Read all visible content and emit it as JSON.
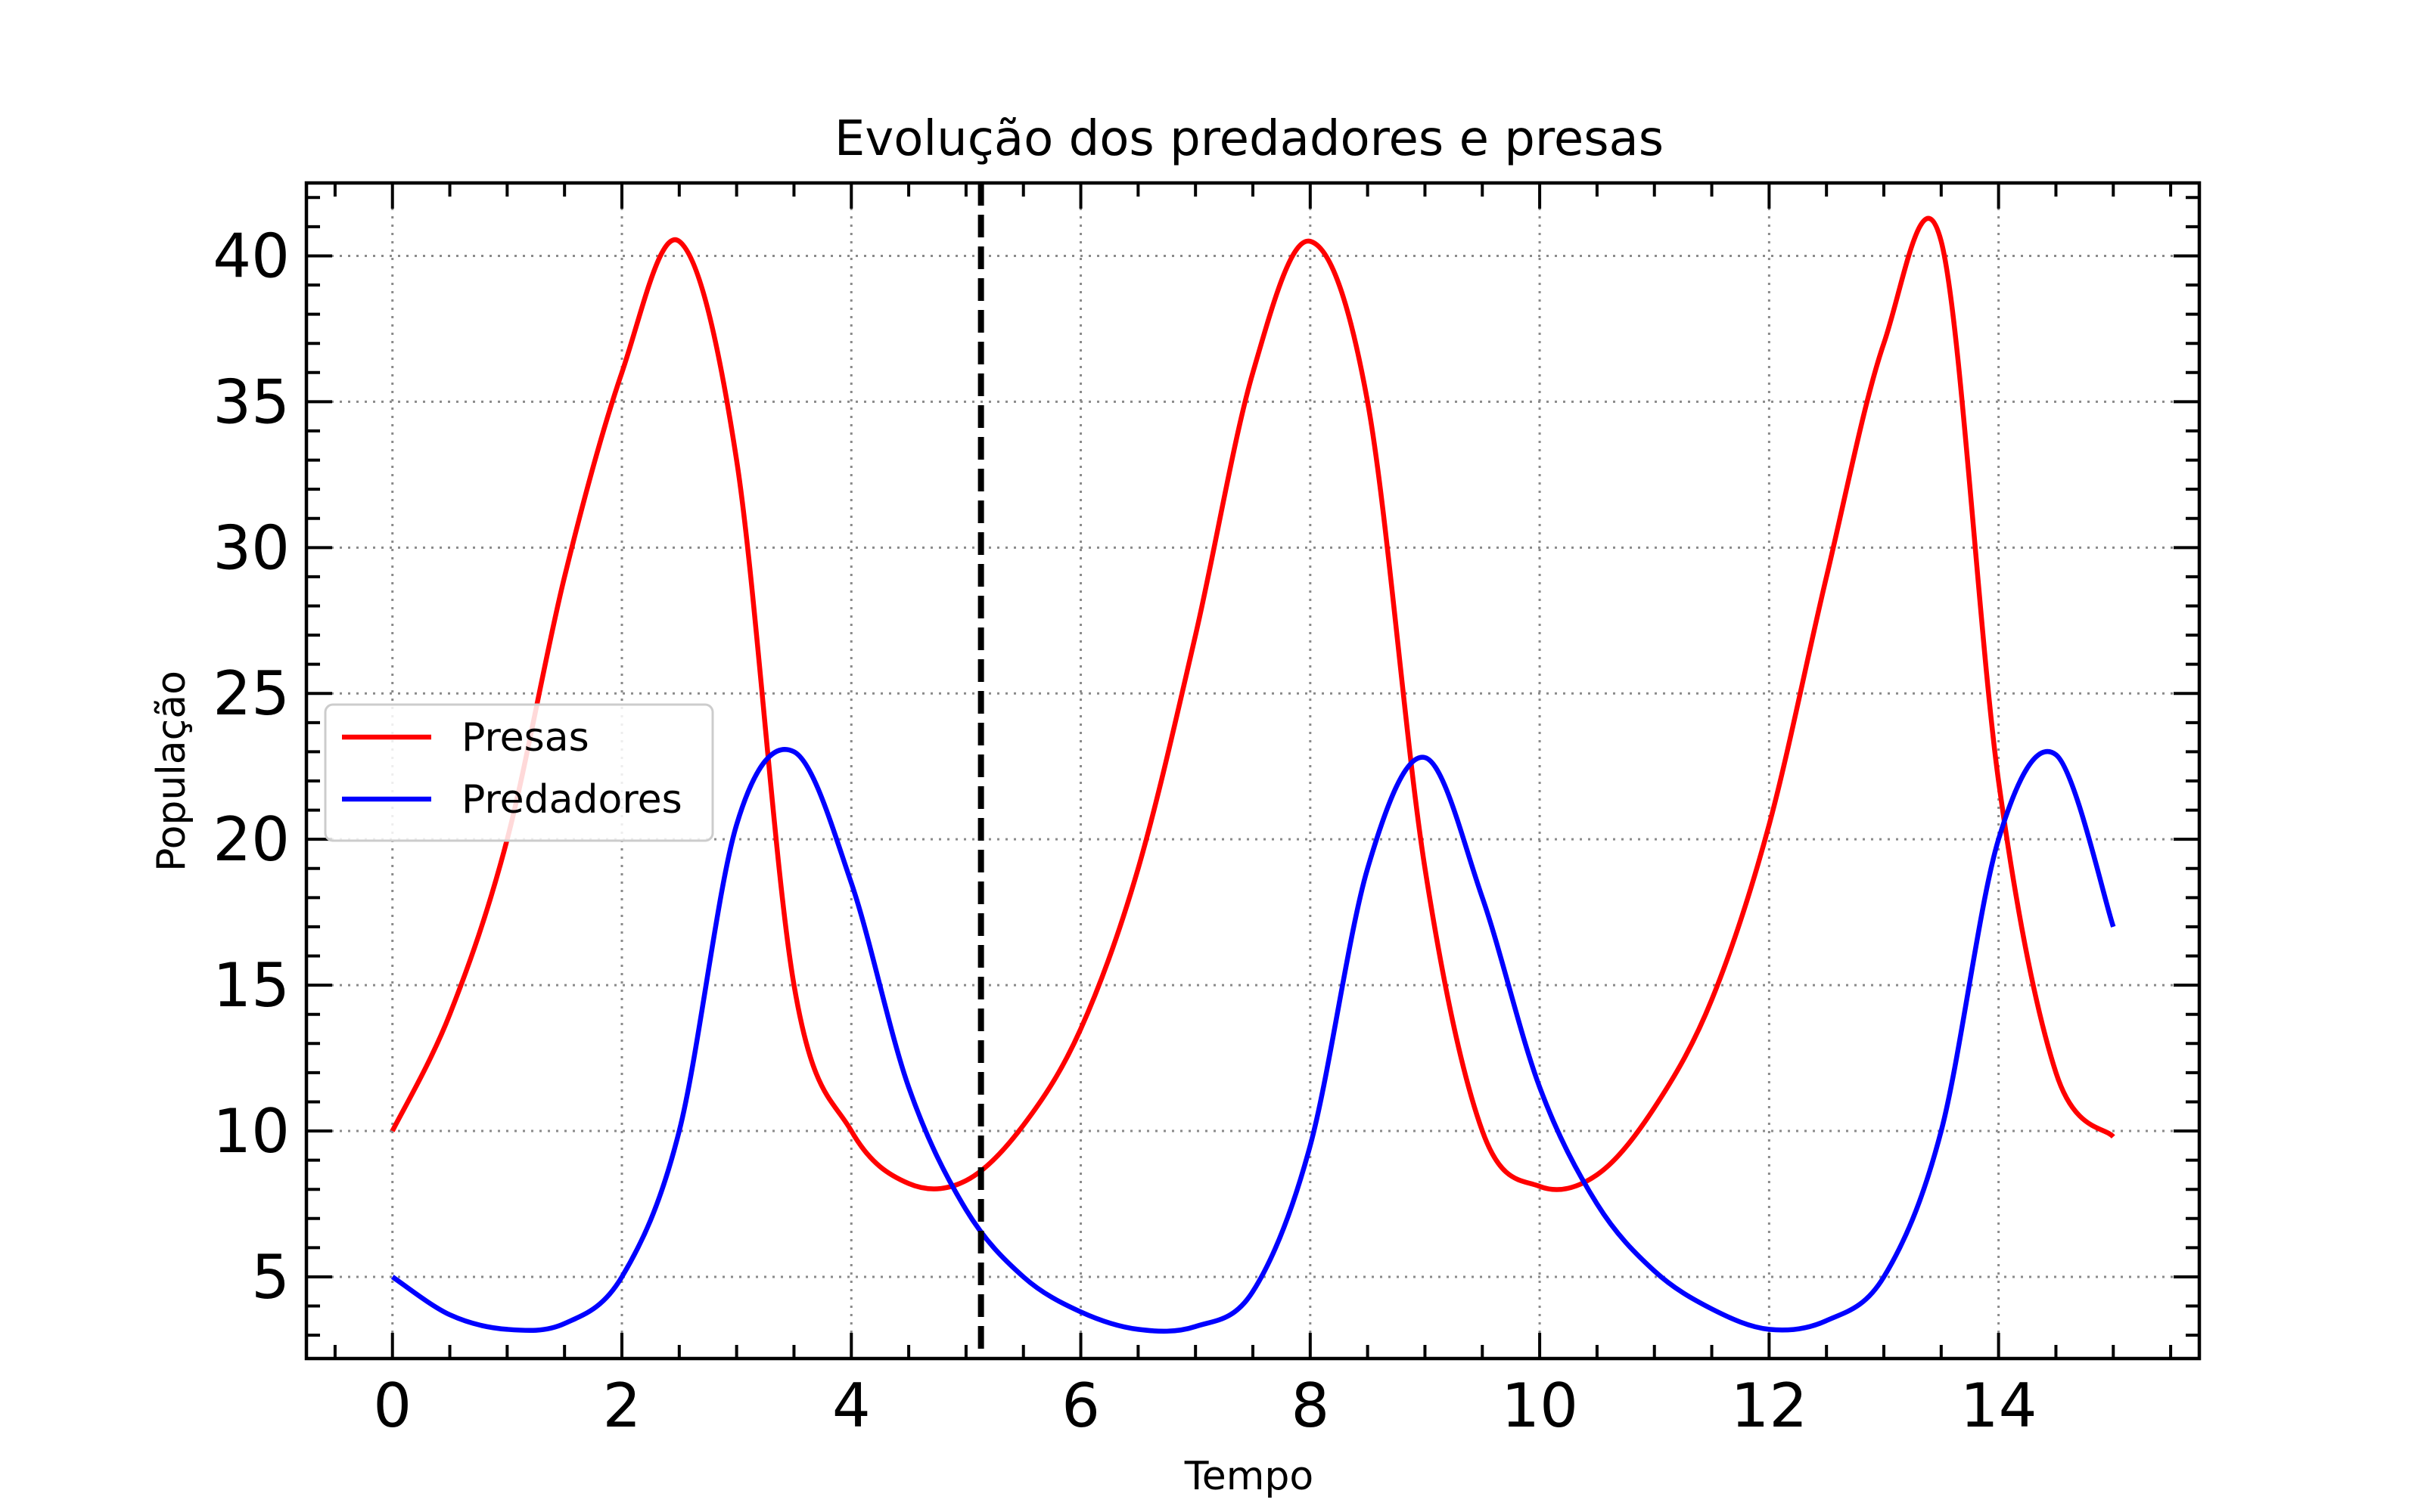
{
  "chart_data": {
    "type": "line",
    "title": "Evolução dos predadores e presas",
    "xlabel": "Tempo",
    "ylabel": "População",
    "xlim": [
      -0.75,
      15.75
    ],
    "ylim": [
      2.2,
      42.5
    ],
    "xticks": [
      0,
      2,
      4,
      6,
      8,
      10,
      12,
      14
    ],
    "yticks": [
      5,
      10,
      15,
      20,
      25,
      30,
      35,
      40
    ],
    "grid": true,
    "legend_position": "center-left",
    "vline": {
      "x": 5.13,
      "color": "#000000",
      "style": "dashed"
    },
    "series": [
      {
        "name": "Presas",
        "color": "#ff0000",
        "x": [
          0,
          0.5,
          1,
          1.5,
          2,
          2.5,
          3,
          3.5,
          4,
          4.5,
          5,
          5.5,
          6,
          6.5,
          7,
          7.5,
          8,
          8.5,
          9,
          9.5,
          10,
          10.5,
          11,
          11.5,
          12,
          12.5,
          13,
          13.5,
          14,
          14.5,
          15
        ],
        "values": [
          10,
          14,
          20,
          29,
          36,
          40.5,
          33,
          15,
          10,
          8.2,
          8.3,
          10.2,
          13.5,
          19,
          27,
          36,
          40.5,
          35,
          19,
          10,
          8.1,
          8.5,
          10.8,
          14.5,
          20.5,
          29,
          37,
          40.5,
          22,
          12,
          9.8
        ]
      },
      {
        "name": "Predadores",
        "color": "#0000ff",
        "x": [
          0,
          0.5,
          1,
          1.5,
          2,
          2.5,
          3,
          3.5,
          4,
          4.5,
          5,
          5.5,
          6,
          6.5,
          7,
          7.5,
          8,
          8.5,
          9,
          9.5,
          10,
          10.5,
          11,
          11.5,
          12,
          12.5,
          13,
          13.5,
          14,
          14.5,
          15
        ],
        "values": [
          5,
          3.7,
          3.2,
          3.4,
          5,
          10,
          20.5,
          23,
          18.5,
          11.5,
          7.3,
          5,
          3.8,
          3.2,
          3.3,
          4.5,
          9.5,
          19,
          22.8,
          18,
          11.5,
          7.5,
          5.2,
          3.9,
          3.2,
          3.5,
          5,
          10,
          20,
          22.9,
          17
        ]
      }
    ]
  }
}
